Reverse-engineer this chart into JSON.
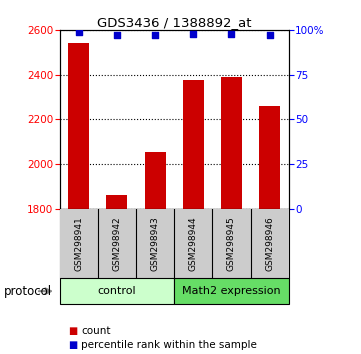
{
  "title": "GDS3436 / 1388892_at",
  "samples": [
    "GSM298941",
    "GSM298942",
    "GSM298943",
    "GSM298944",
    "GSM298945",
    "GSM298946"
  ],
  "counts": [
    2540,
    1860,
    2055,
    2375,
    2390,
    2260
  ],
  "percentile_ranks": [
    99,
    97,
    97,
    98,
    98,
    97
  ],
  "ylim_left": [
    1800,
    2600
  ],
  "ylim_right": [
    0,
    100
  ],
  "yticks_left": [
    1800,
    2000,
    2200,
    2400,
    2600
  ],
  "yticks_right": [
    0,
    25,
    50,
    75,
    100
  ],
  "ytick_labels_right": [
    "0",
    "25",
    "50",
    "75",
    "100%"
  ],
  "bar_color": "#cc0000",
  "dot_color": "#0000cc",
  "control_label": "control",
  "math2_label": "Math2 expression",
  "protocol_label": "protocol",
  "legend_count_label": "count",
  "legend_percentile_label": "percentile rank within the sample",
  "control_bg": "#ccffcc",
  "math2_bg": "#66dd66",
  "tick_bg": "#cccccc",
  "fig_bg": "#ffffff",
  "n_control": 3,
  "n_math2": 3
}
